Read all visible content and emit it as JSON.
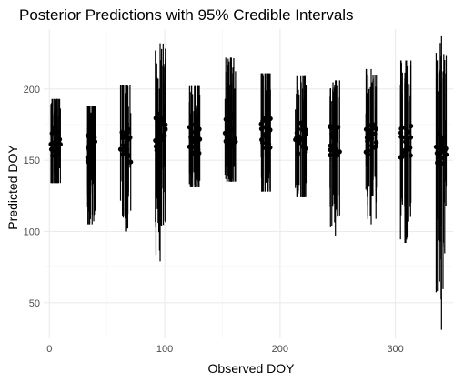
{
  "chart_data": {
    "type": "scatter",
    "title": "Posterior Predictions with 95% Credible Intervals",
    "xlabel": "Observed DOY",
    "ylabel": "Predicted DOY",
    "xlim": [
      -5,
      350
    ],
    "ylim": [
      25,
      242
    ],
    "x_ticks": [
      0,
      100,
      200,
      300
    ],
    "y_ticks": [
      50,
      100,
      150,
      200
    ],
    "grid": true,
    "legend": "none",
    "groups": [
      {
        "x": 5,
        "mean": 162,
        "lower": 134,
        "upper": 193
      },
      {
        "x": 37,
        "mean": 158,
        "lower": 105,
        "upper": 188
      },
      {
        "x": 66,
        "mean": 160,
        "lower": 100,
        "upper": 203
      },
      {
        "x": 96,
        "mean": 168,
        "lower": 79,
        "upper": 232
      },
      {
        "x": 126,
        "mean": 165,
        "lower": 131,
        "upper": 202
      },
      {
        "x": 157,
        "mean": 172,
        "lower": 135,
        "upper": 222
      },
      {
        "x": 187,
        "mean": 168,
        "lower": 128,
        "upper": 211
      },
      {
        "x": 218,
        "mean": 165,
        "lower": 124,
        "upper": 209
      },
      {
        "x": 248,
        "mean": 164,
        "lower": 97,
        "upper": 206
      },
      {
        "x": 279,
        "mean": 165,
        "lower": 105,
        "upper": 214
      },
      {
        "x": 309,
        "mean": 163,
        "lower": 92,
        "upper": 220
      },
      {
        "x": 340,
        "mean": 158,
        "lower": 31,
        "upper": 237
      }
    ]
  }
}
